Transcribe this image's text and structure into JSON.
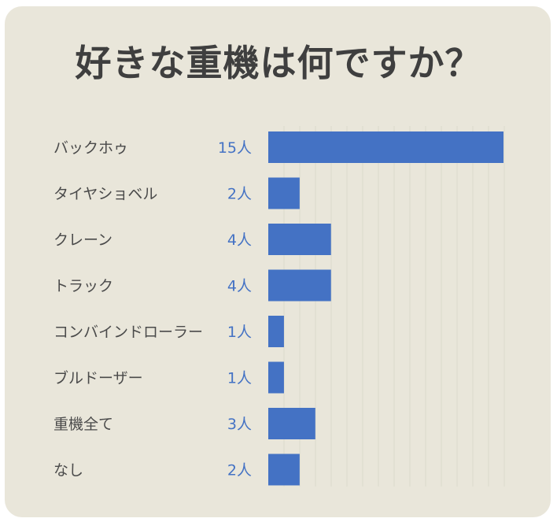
{
  "chart_data": {
    "type": "bar",
    "orientation": "horizontal",
    "title": "好きな重機は何ですか？",
    "categories": [
      "バックホゥ",
      "タイヤショベル",
      "クレーン",
      "トラック",
      "コンバインドローラー",
      "ブルドーザー",
      "重機全て",
      "なし"
    ],
    "values": [
      15,
      2,
      4,
      4,
      1,
      1,
      3,
      2
    ],
    "value_labels": [
      "15人",
      "2人",
      "4人",
      "4人",
      "1人",
      "1人",
      "3人",
      "2人"
    ],
    "xlim": [
      0,
      15
    ],
    "grid": true,
    "legend": "none",
    "colors": {
      "bar": "#4472c4",
      "value_text": "#4472c4",
      "background": "#e9e6da",
      "title_text": "#3f3f3f"
    }
  }
}
